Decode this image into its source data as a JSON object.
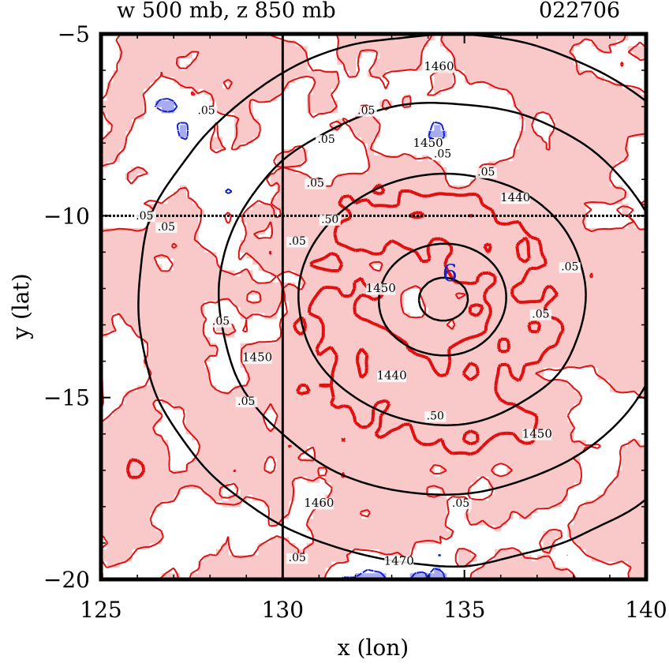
{
  "header": {
    "title": "w 500 mb, z 850 mb",
    "timestamp": "022706"
  },
  "colors": {
    "positive_fill": "#f9c9c9",
    "negative_fill": "#a8abf0",
    "positive_line": "#e01010",
    "negative_line": "#1020d0",
    "height_line": "#000000"
  },
  "chart_data": {
    "type": "contour",
    "title": "w 500 mb, z 850 mb",
    "xlabel": "x (lon)",
    "ylabel": "y (lat)",
    "xlim": [
      125,
      140
    ],
    "ylim": [
      -20,
      -5
    ],
    "x_ticks": [
      125,
      130,
      135,
      140
    ],
    "y_ticks": [
      -5,
      -10,
      -15,
      -20
    ],
    "x_tick_labels": [
      "125",
      "130",
      "135",
      "140"
    ],
    "y_tick_labels": [
      "−5",
      "−10",
      "−15",
      "−20"
    ],
    "reference_lines": {
      "lon": 130,
      "lat": -10
    },
    "center_marker": {
      "label": "6",
      "lon": 134.6,
      "lat": -11.8
    },
    "height_contours": [
      {
        "level": 1440,
        "label": "1440",
        "label_positions": [
          [
            136.4,
            -9.6
          ],
          [
            133.0,
            -14.5
          ]
        ]
      },
      {
        "level": 1450,
        "label": "1450",
        "label_positions": [
          [
            134.0,
            -8.1
          ],
          [
            137.0,
            -16.1
          ],
          [
            132.7,
            -12.1
          ],
          [
            129.3,
            -14.0
          ]
        ]
      },
      {
        "level": 1460,
        "label": "1460",
        "label_positions": [
          [
            134.3,
            -6.0
          ],
          [
            131.0,
            -18.0
          ]
        ]
      },
      {
        "level": 1470,
        "label": "1470",
        "label_positions": [
          [
            133.2,
            -19.6
          ]
        ]
      }
    ],
    "w_contours": [
      {
        "level": 0.05,
        "label": ".05"
      },
      {
        "level": -0.05,
        "label": "-.05"
      },
      {
        "level": 0.5,
        "label": ".50"
      }
    ],
    "w_labels": [
      {
        "text": ".05",
        "lon": 127.9,
        "lat": -7.2
      },
      {
        "text": ".05",
        "lon": 131.2,
        "lat": -8.0
      },
      {
        "text": ".05",
        "lon": 132.3,
        "lat": -7.2
      },
      {
        "text": ".05",
        "lon": 134.4,
        "lat": -8.4
      },
      {
        "text": ".05",
        "lon": 135.6,
        "lat": -8.9
      },
      {
        "text": ".05",
        "lon": 126.2,
        "lat": -10.1
      },
      {
        "text": ".05",
        "lon": 126.8,
        "lat": -10.4
      },
      {
        "text": ".05",
        "lon": 130.9,
        "lat": -9.2
      },
      {
        "text": ".05",
        "lon": 130.4,
        "lat": -10.8
      },
      {
        "text": ".05",
        "lon": 137.9,
        "lat": -11.5
      },
      {
        "text": ".05",
        "lon": 128.3,
        "lat": -13.0
      },
      {
        "text": ".05",
        "lon": 129.0,
        "lat": -15.2
      },
      {
        "text": ".05",
        "lon": 137.1,
        "lat": -12.8
      },
      {
        "text": ".05",
        "lon": 134.9,
        "lat": -18.0
      },
      {
        "text": ".05",
        "lon": 130.4,
        "lat": -19.5
      },
      {
        "text": ".50",
        "lon": 134.2,
        "lat": -15.6
      },
      {
        "text": ".50",
        "lon": 131.3,
        "lat": -10.2
      }
    ]
  }
}
